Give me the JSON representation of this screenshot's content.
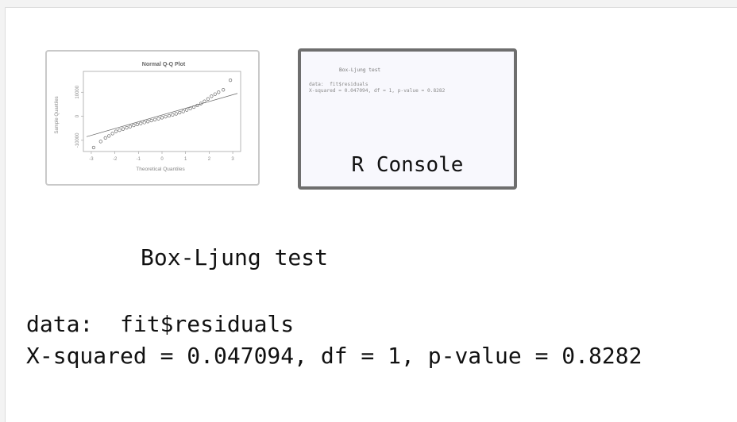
{
  "thumbnails": {
    "qq_plot": {
      "title": "Normal Q-Q Plot",
      "xlabel": "Theoretical Quantiles",
      "ylabel": "Sample Quantiles",
      "x_ticks": [
        "-3",
        "-2",
        "-1",
        "0",
        "1",
        "2",
        "3"
      ],
      "y_ticks": [
        "-10000",
        "0",
        "10000"
      ]
    },
    "console": {
      "mini_title": "Box-Ljung test",
      "mini_data": "data:  fit$residuals",
      "mini_stats": "X-squared = 0.047094, df = 1, p-value = 0.8282",
      "label": "R Console"
    }
  },
  "output": {
    "title": "Box-Ljung test",
    "data_line": "data:  fit$residuals",
    "stats_line": "X-squared = 0.047094, df = 1, p-value = 0.8282"
  },
  "chart_data": {
    "type": "scatter",
    "title": "Normal Q-Q Plot",
    "xlabel": "Theoretical Quantiles",
    "ylabel": "Sample Quantiles",
    "xlim": [
      -3.2,
      3.2
    ],
    "ylim": [
      -14000,
      18000
    ],
    "x_ticks": [
      -3,
      -2,
      -1,
      0,
      1,
      2,
      3
    ],
    "y_ticks": [
      -10000,
      0,
      10000
    ],
    "reference_line": {
      "x": [
        -3.2,
        3.2
      ],
      "y": [
        -8500,
        9500
      ]
    },
    "points": {
      "x": [
        -2.9,
        -2.6,
        -2.4,
        -2.25,
        -2.1,
        -1.95,
        -1.8,
        -1.65,
        -1.5,
        -1.35,
        -1.2,
        -1.05,
        -0.9,
        -0.75,
        -0.6,
        -0.45,
        -0.3,
        -0.15,
        0,
        0.15,
        0.3,
        0.45,
        0.6,
        0.75,
        0.9,
        1.05,
        1.2,
        1.35,
        1.5,
        1.65,
        1.8,
        1.95,
        2.1,
        2.25,
        2.4,
        2.6,
        2.9
      ],
      "y": [
        -13000,
        -10500,
        -9000,
        -8200,
        -7200,
        -6300,
        -5800,
        -5300,
        -4800,
        -4300,
        -3800,
        -3400,
        -3000,
        -2600,
        -2200,
        -1800,
        -1400,
        -1000,
        -600,
        -200,
        200,
        600,
        1000,
        1500,
        2000,
        2600,
        3200,
        3800,
        4500,
        5300,
        6200,
        7200,
        8300,
        9200,
        10000,
        11000,
        15000
      ]
    }
  }
}
